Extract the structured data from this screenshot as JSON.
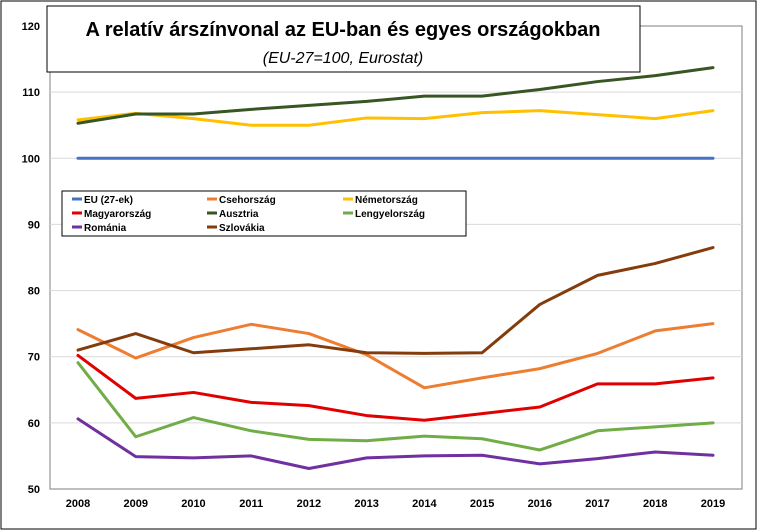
{
  "chart_data": {
    "type": "line",
    "title": "A relatív árszínvonal az EU-ban és egyes országokban",
    "subtitle": "(EU-27=100, Eurostat)",
    "xlabel": "",
    "ylabel": "",
    "ylim": [
      50,
      120
    ],
    "yticks": [
      "50",
      "60",
      "70",
      "80",
      "90",
      "100",
      "110",
      "120"
    ],
    "grid": true,
    "legend_position": "middle-left",
    "categories": [
      "2008",
      "2009",
      "2010",
      "2011",
      "2012",
      "2013",
      "2014",
      "2015",
      "2016",
      "2017",
      "2018",
      "2019"
    ],
    "series": [
      {
        "name": "EU (27-ek)",
        "color": "#4472c4",
        "values": [
          100,
          100,
          100,
          100,
          100,
          100,
          100,
          100,
          100,
          100,
          100,
          100
        ]
      },
      {
        "name": "Csehország",
        "color": "#ed7d31",
        "values": [
          74.1,
          69.8,
          72.9,
          74.9,
          73.5,
          70.3,
          65.3,
          66.8,
          68.2,
          70.5,
          73.9,
          75.0
        ]
      },
      {
        "name": "Németország",
        "color": "#ffc000",
        "values": [
          105.8,
          106.8,
          106.0,
          105.0,
          105.0,
          106.1,
          106.0,
          106.9,
          107.2,
          106.6,
          106.0,
          107.2
        ]
      },
      {
        "name": "Magyarország",
        "color": "#e00000",
        "values": [
          70.2,
          63.7,
          64.6,
          63.1,
          62.6,
          61.1,
          60.4,
          61.4,
          62.4,
          65.9,
          65.9,
          66.8
        ]
      },
      {
        "name": "Ausztria",
        "color": "#375623",
        "values": [
          105.3,
          106.7,
          106.7,
          107.4,
          108.0,
          108.6,
          109.4,
          109.4,
          110.4,
          111.6,
          112.5,
          113.7
        ]
      },
      {
        "name": "Lengyelország",
        "color": "#70ad47",
        "values": [
          69.1,
          57.9,
          60.8,
          58.8,
          57.5,
          57.3,
          58.0,
          57.6,
          55.9,
          58.8,
          59.4,
          60.0
        ]
      },
      {
        "name": "Románia",
        "color": "#7030a0",
        "values": [
          60.6,
          54.9,
          54.7,
          55.0,
          53.1,
          54.7,
          55.0,
          55.1,
          53.8,
          54.6,
          55.6,
          55.1
        ]
      },
      {
        "name": "Szlovákia",
        "color": "#843c0c",
        "values": [
          71.0,
          73.5,
          70.6,
          71.2,
          71.8,
          70.6,
          70.5,
          70.6,
          77.9,
          82.3,
          84.1,
          86.5
        ]
      }
    ]
  }
}
